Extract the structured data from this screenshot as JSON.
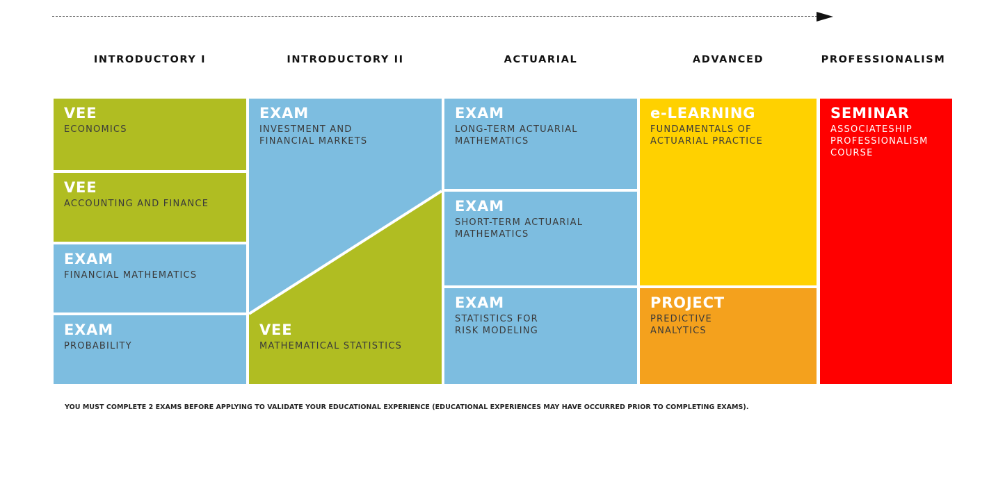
{
  "columns": [
    "INTRODUCTORY I",
    "INTRODUCTORY II",
    "ACTUARIAL",
    "ADVANCED",
    "PROFESSIONALISM"
  ],
  "intro1": [
    {
      "title": "VEE",
      "sub": "ECONOMICS"
    },
    {
      "title": "VEE",
      "sub": "ACCOUNTING AND FINANCE"
    },
    {
      "title": "EXAM",
      "sub": "FINANCIAL MATHEMATICS"
    },
    {
      "title": "EXAM",
      "sub": "PROBABILITY"
    }
  ],
  "intro2": {
    "upper": {
      "title": "EXAM",
      "sub": "INVESTMENT AND\nFINANCIAL MARKETS"
    },
    "lower": {
      "title": "VEE",
      "sub": "MATHEMATICAL STATISTICS"
    }
  },
  "actuarial": [
    {
      "title": "EXAM",
      "sub": "LONG-TERM ACTUARIAL\nMATHEMATICS"
    },
    {
      "title": "EXAM",
      "sub": "SHORT-TERM ACTUARIAL\nMATHEMATICS"
    },
    {
      "title": "EXAM",
      "sub": "STATISTICS FOR\nRISK MODELING"
    }
  ],
  "advanced": [
    {
      "title": "e-LEARNING",
      "sub": "FUNDAMENTALS OF\nACTUARIAL PRACTICE"
    },
    {
      "title": "PROJECT",
      "sub": "PREDICTIVE\nANALYTICS"
    }
  ],
  "professionalism": {
    "title": "SEMINAR",
    "sub": "ASSOCIATESHIP\nPROFESSIONALISM\nCOURSE"
  },
  "colors": {
    "olive": "#b0bd22",
    "blue": "#7dbde0",
    "yellow": "#ffd100",
    "orange": "#f4a11d",
    "red": "#ff0000"
  },
  "footnote": "YOU MUST COMPLETE 2 EXAMS BEFORE APPLYING TO VALIDATE YOUR EDUCATIONAL EXPERIENCE (EDUCATIONAL EXPERIENCES MAY HAVE OCCURRED PRIOR TO COMPLETING EXAMS)."
}
